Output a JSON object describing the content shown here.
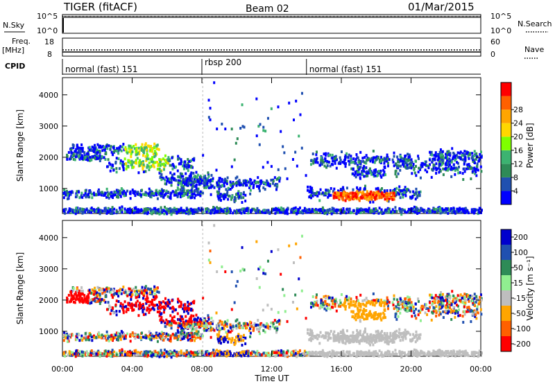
{
  "header": {
    "title": "TIGER (fitACF)",
    "beam": "Beam 02",
    "date": "01/Mar/2015"
  },
  "strips": {
    "nsky_label": "N.Sky",
    "nsky_ticks": [
      "10^5",
      "10^0"
    ],
    "nsearch_label": "N.Search",
    "nsearch_ticks": [
      "10^5",
      "10^0"
    ],
    "freq_label": "Freq.",
    "freq_unit": "[MHz]",
    "freq_ticks": [
      "18",
      "8"
    ],
    "nave_label": "Nave",
    "nave_ticks": [
      "60",
      "0"
    ],
    "cpid_label": "CPID",
    "cpid_segments": [
      {
        "label": "normal (fast) 151",
        "start_hour": 0,
        "end_hour": 8
      },
      {
        "label": "rbsp 200",
        "start_hour": 8,
        "end_hour": 14
      },
      {
        "label": "normal (fast) 151",
        "start_hour": 14,
        "end_hour": 24
      }
    ]
  },
  "x_axis": {
    "label": "Time UT",
    "ticks": [
      "00:00",
      "04:00",
      "08:00",
      "12:00",
      "16:00",
      "20:00",
      "00:00"
    ],
    "tick_hours": [
      0,
      4,
      8,
      12,
      16,
      20,
      24
    ]
  },
  "colors": {
    "power": [
      "#0000ff",
      "#2050b0",
      "#2e8b57",
      "#3cb371",
      "#7fff00",
      "#ffd700",
      "#ffa500",
      "#ff6000",
      "#ff0000"
    ],
    "velocity": [
      "#ff0000",
      "#ff6000",
      "#ffa500",
      "#bebebe",
      "#90ee90",
      "#2e8b57",
      "#2050b0",
      "#0000cd"
    ]
  },
  "chart_data": [
    {
      "type": "heatmap",
      "ylabel": "Slant Range [km]",
      "xlabel": "",
      "yticks": [
        1000,
        2000,
        3000,
        4000
      ],
      "ylim": [
        200,
        4550
      ],
      "xlim": [
        0,
        24
      ],
      "colorbar_label": "Power [dB]",
      "colorbar_ticks": [
        "4",
        "8",
        "12",
        "16",
        "20",
        "24",
        "28"
      ],
      "grid": false
    },
    {
      "type": "heatmap",
      "ylabel": "Slant Range [km]",
      "xlabel": "Time UT",
      "yticks": [
        1000,
        2000,
        3000,
        4000
      ],
      "ylim": [
        200,
        4550
      ],
      "xlim": [
        0,
        24
      ],
      "colorbar_label": "Velocity [m s⁻¹]",
      "colorbar_ticks": [
        "200",
        "100",
        "50",
        "15",
        "-15",
        "-50",
        "-100",
        "-200"
      ],
      "grid": false
    }
  ]
}
